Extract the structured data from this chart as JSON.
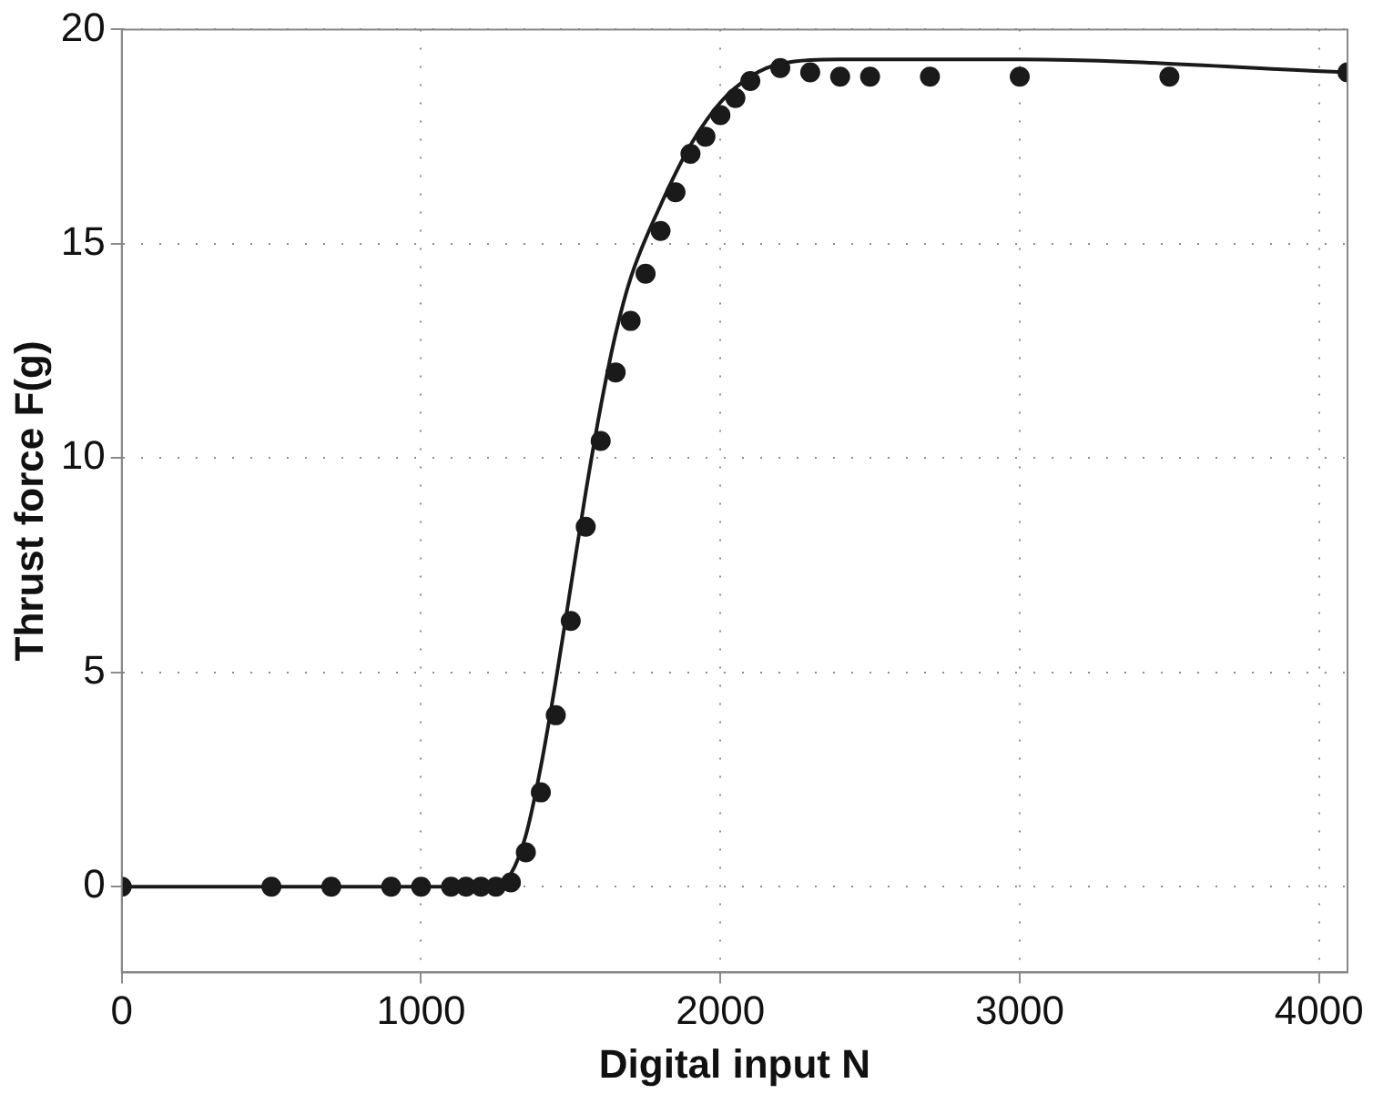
{
  "chart_data": {
    "type": "scatter",
    "xlabel": "Digital input N",
    "ylabel": "Thrust force F(g)",
    "xlim": [
      0,
      4095
    ],
    "ylim": [
      -2,
      20
    ],
    "xticks": [
      0,
      1000,
      2000,
      3000,
      4000
    ],
    "yticks": [
      0,
      5,
      10,
      15,
      20
    ],
    "grid": true,
    "legend": false,
    "marker": "circle",
    "series": [
      {
        "color": "#1a1a1a",
        "x": [
          0,
          500,
          700,
          900,
          1000,
          1100,
          1150,
          1200,
          1250,
          1300,
          1350,
          1400,
          1450,
          1500,
          1550,
          1600,
          1650,
          1700,
          1750,
          1800,
          1850,
          1900,
          1950,
          2000,
          2050,
          2100,
          2200,
          2300,
          2400,
          2500,
          2700,
          3000,
          3500,
          4095
        ],
        "values": [
          0,
          0,
          0,
          0,
          0,
          0,
          0,
          0,
          0,
          0.1,
          0.8,
          2.2,
          4.0,
          6.2,
          8.4,
          10.4,
          12.0,
          13.2,
          14.3,
          15.3,
          16.2,
          17.1,
          17.5,
          18.0,
          18.4,
          18.8,
          19.1,
          19.0,
          18.9,
          18.9,
          18.9,
          18.9,
          18.9,
          19.0
        ]
      },
      {
        "type": "line",
        "color": "#1a1a1a",
        "marker": "none",
        "line_style": "solid",
        "x": [
          0,
          1250,
          1300,
          1350,
          1400,
          1450,
          1500,
          1550,
          1600,
          1650,
          1700,
          1800,
          1900,
          2000,
          2100,
          2200,
          2400,
          3000,
          4095
        ],
        "values": [
          0,
          0,
          0.3,
          1.2,
          2.8,
          4.8,
          7.0,
          9.2,
          11.2,
          12.9,
          14.2,
          15.9,
          17.3,
          18.3,
          18.9,
          19.2,
          19.3,
          19.3,
          19.0
        ]
      }
    ]
  }
}
